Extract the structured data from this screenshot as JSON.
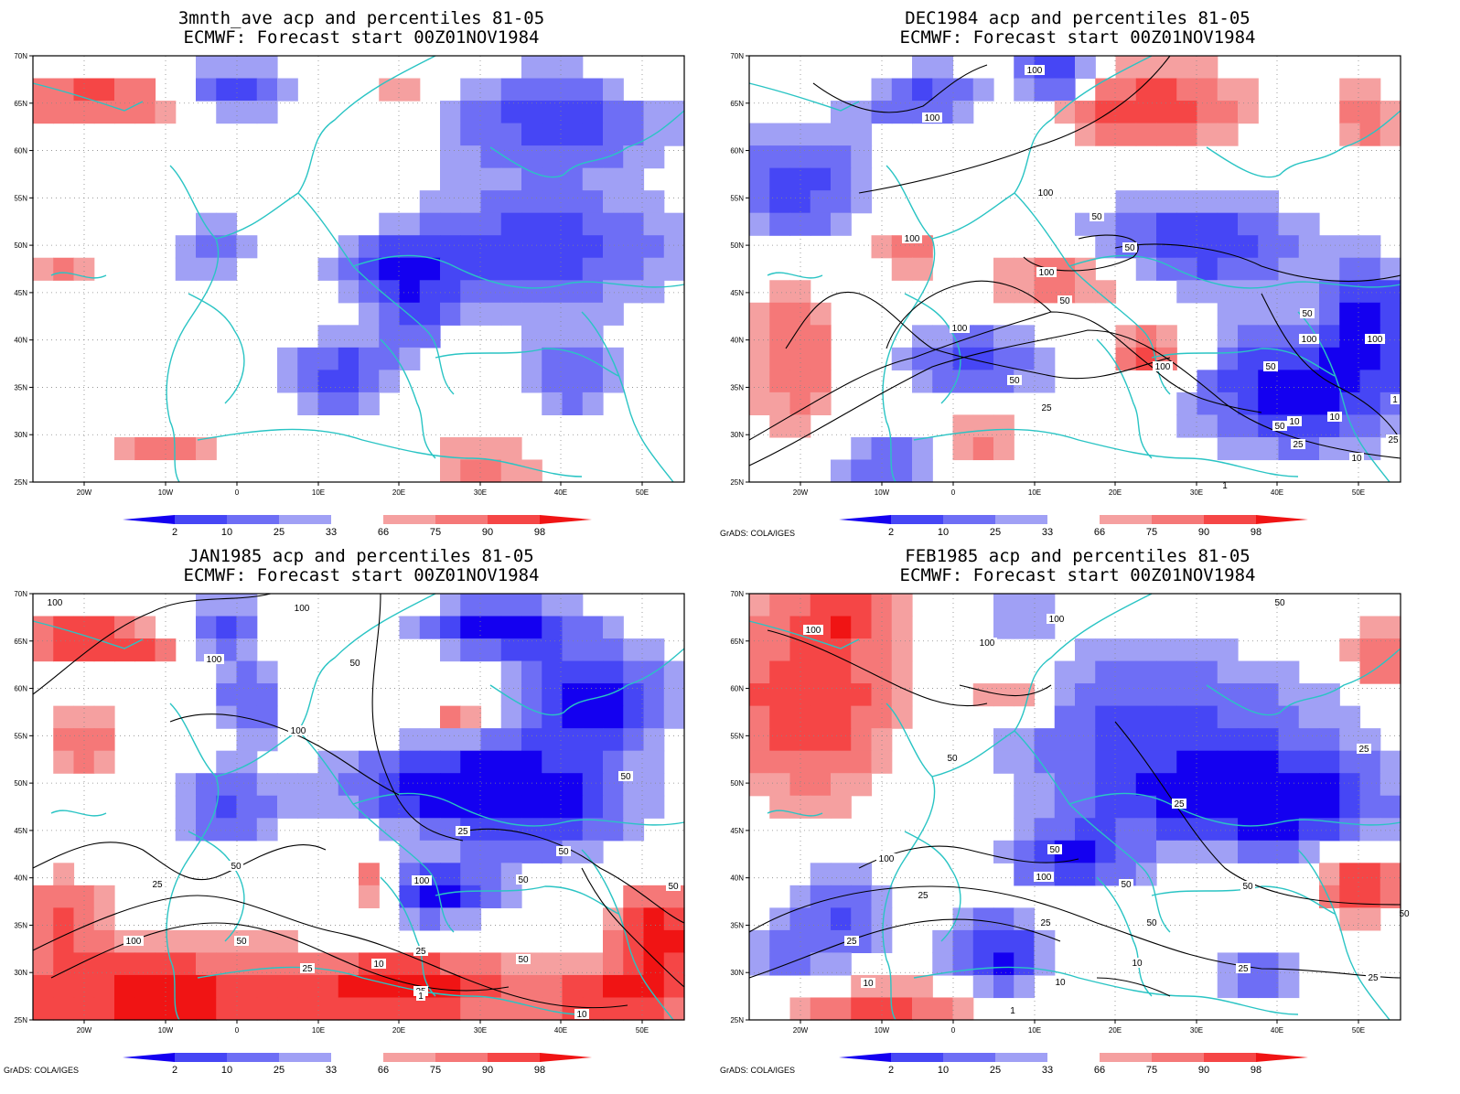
{
  "panels": [
    {
      "title1": "3mnth_ave acp and percentiles 81-05",
      "title2": "ECMWF: Forecast start 00Z01NOV1984",
      "credit": ""
    },
    {
      "title1": "DEC1984 acp and percentiles 81-05",
      "title2": "ECMWF: Forecast start 00Z01NOV1984",
      "credit": "GrADS: COLA/IGES"
    },
    {
      "title1": "JAN1985 acp and percentiles 81-05",
      "title2": "ECMWF: Forecast start 00Z01NOV1984",
      "credit": "GrADS: COLA/IGES"
    },
    {
      "title1": "FEB1985 acp and percentiles 81-05",
      "title2": "ECMWF: Forecast start 00Z01NOV1984",
      "credit": "GrADS: COLA/IGES"
    }
  ],
  "axes": {
    "lon_labels": [
      "20W",
      "10W",
      "0",
      "10E",
      "20E",
      "30E",
      "40E",
      "50E"
    ],
    "lat_labels": [
      "70N",
      "65N",
      "60N",
      "55N",
      "50N",
      "45N",
      "40N",
      "35N",
      "30N",
      "25N"
    ]
  },
  "colorbar": {
    "labels": [
      "2",
      "10",
      "25",
      "33",
      "66",
      "75",
      "90",
      "98"
    ],
    "colors": [
      "#1400f0",
      "#4646f5",
      "#6e6ef5",
      "#a0a0f5",
      "#ffffff",
      "#f5a0a0",
      "#f57878",
      "#f54646",
      "#f01414"
    ]
  },
  "colors": {
    "coastline": "#2ac4c4",
    "contour": "#000000",
    "grid": "#888888"
  },
  "contour_labels": {
    "p1": [
      "100",
      "100",
      "100",
      "50",
      "100",
      "50",
      "100",
      "50",
      "100",
      "50",
      "100",
      "25",
      "50",
      "100",
      "100",
      "50",
      "10",
      "25",
      "50",
      "10",
      "25",
      "10",
      "1",
      "1",
      "25"
    ],
    "p2": [
      "100",
      "100",
      "100",
      "50",
      "100",
      "50",
      "25",
      "50",
      "50",
      "25",
      "100",
      "50",
      "100",
      "50",
      "25",
      "10",
      "25",
      "50",
      "1",
      "10",
      "25",
      "50"
    ],
    "p3": [
      "50",
      "100",
      "100",
      "100",
      "50",
      "25",
      "25",
      "100",
      "50",
      "100",
      "50",
      "25",
      "50",
      "50",
      "1",
      "10",
      "25",
      "50",
      "10",
      "25",
      "10",
      "25",
      "25"
    ]
  }
}
